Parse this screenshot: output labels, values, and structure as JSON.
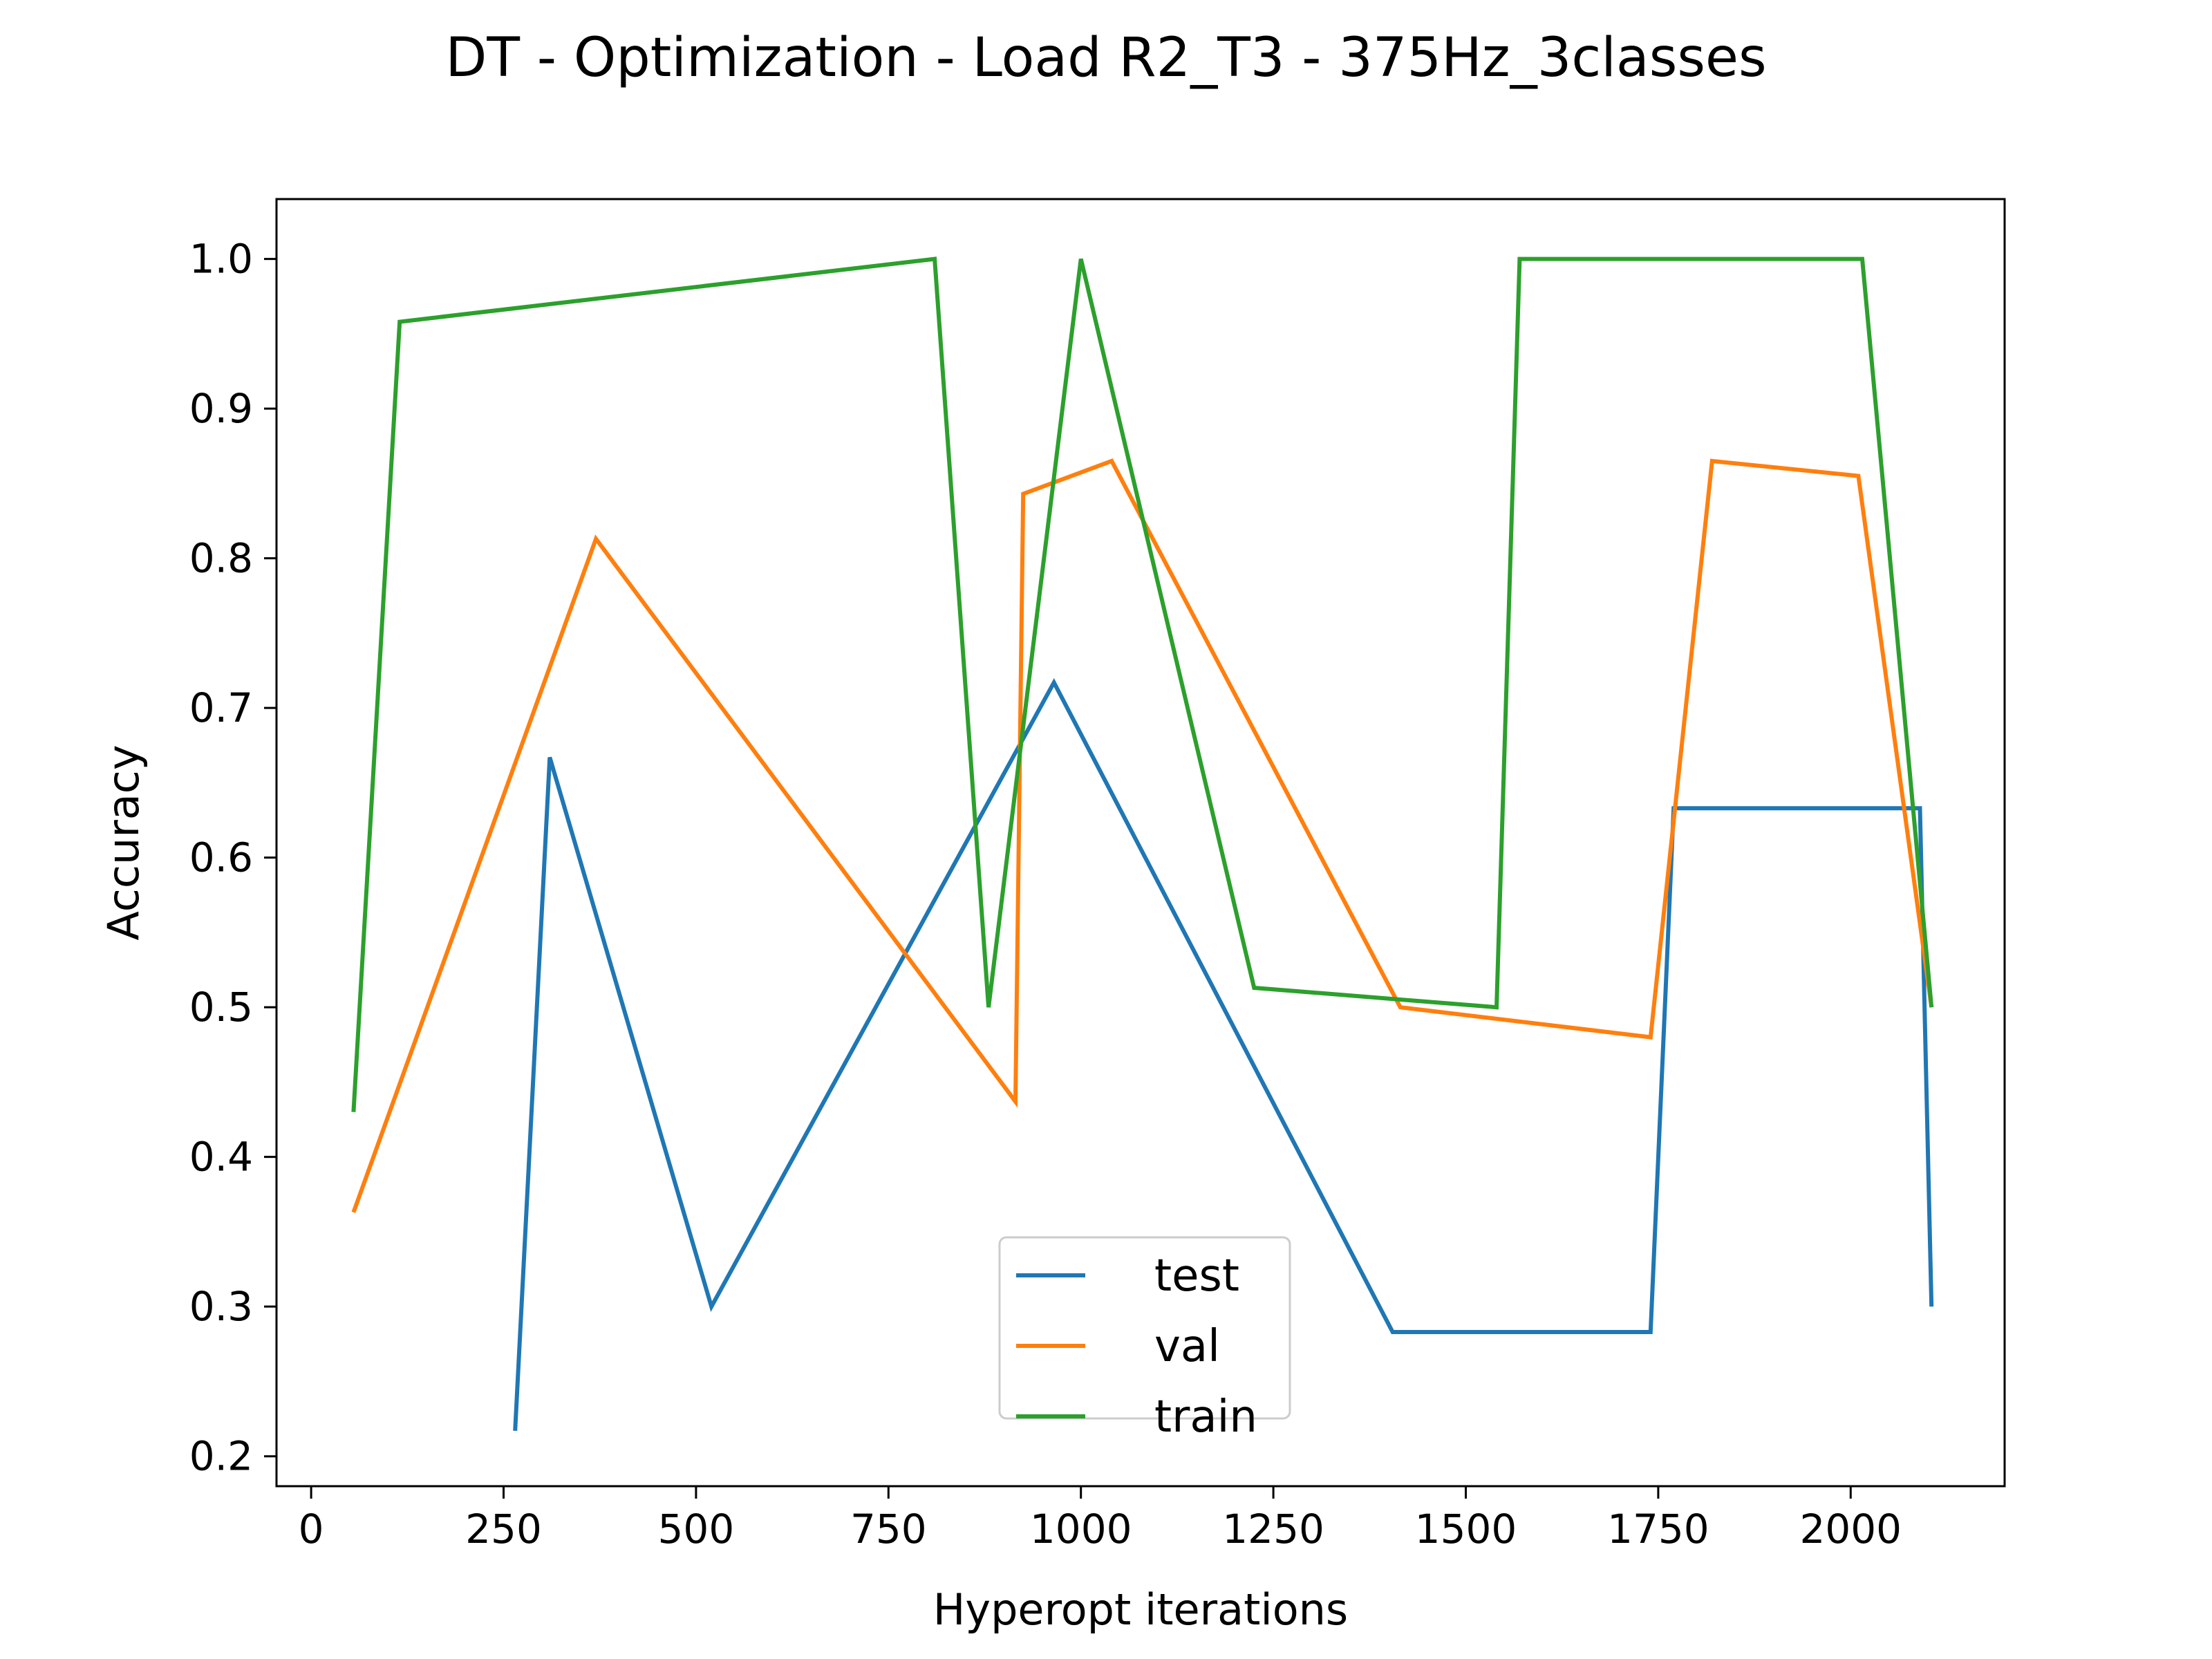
{
  "chart_data": {
    "type": "line",
    "title": "DT - Optimization - Load R2_T3 - 375Hz_3classes",
    "xlabel": "Hyperopt iterations",
    "ylabel": "Accuracy",
    "xlim": [
      -45,
      2200
    ],
    "ylim": [
      0.18,
      1.04
    ],
    "xticks": [
      0,
      250,
      500,
      750,
      1000,
      1250,
      1500,
      1750,
      2000
    ],
    "xtick_labels": [
      "0",
      "250",
      "500",
      "750",
      "1000",
      "1250",
      "1500",
      "1750",
      "2000"
    ],
    "yticks": [
      0.2,
      0.3,
      0.4,
      0.5,
      0.6,
      0.7,
      0.8,
      0.9,
      1.0
    ],
    "ytick_labels": [
      "0.2",
      "0.3",
      "0.4",
      "0.5",
      "0.6",
      "0.7",
      "0.8",
      "0.9",
      "1.0"
    ],
    "grid": false,
    "legend_position": "lower-center",
    "series": [
      {
        "name": "test",
        "color": "#1f77b4",
        "points": [
          [
            265,
            0.217
          ],
          [
            310,
            0.667
          ],
          [
            520,
            0.3
          ],
          [
            965,
            0.717
          ],
          [
            1405,
            0.283
          ],
          [
            1740,
            0.283
          ],
          [
            1770,
            0.633
          ],
          [
            2090,
            0.633
          ],
          [
            2105,
            0.3
          ]
        ]
      },
      {
        "name": "val",
        "color": "#ff7f0e",
        "points": [
          [
            55,
            0.363
          ],
          [
            370,
            0.813
          ],
          [
            915,
            0.437
          ],
          [
            925,
            0.843
          ],
          [
            1040,
            0.865
          ],
          [
            1415,
            0.5
          ],
          [
            1740,
            0.48
          ],
          [
            1820,
            0.865
          ],
          [
            2010,
            0.855
          ],
          [
            2105,
            0.5
          ]
        ]
      },
      {
        "name": "train",
        "color": "#2ca02c",
        "points": [
          [
            55,
            0.43
          ],
          [
            115,
            0.958
          ],
          [
            810,
            1.0
          ],
          [
            880,
            0.5
          ],
          [
            1000,
            1.0
          ],
          [
            1225,
            0.513
          ],
          [
            1540,
            0.5
          ],
          [
            1570,
            1.0
          ],
          [
            2015,
            1.0
          ],
          [
            2105,
            0.5
          ]
        ]
      }
    ]
  }
}
